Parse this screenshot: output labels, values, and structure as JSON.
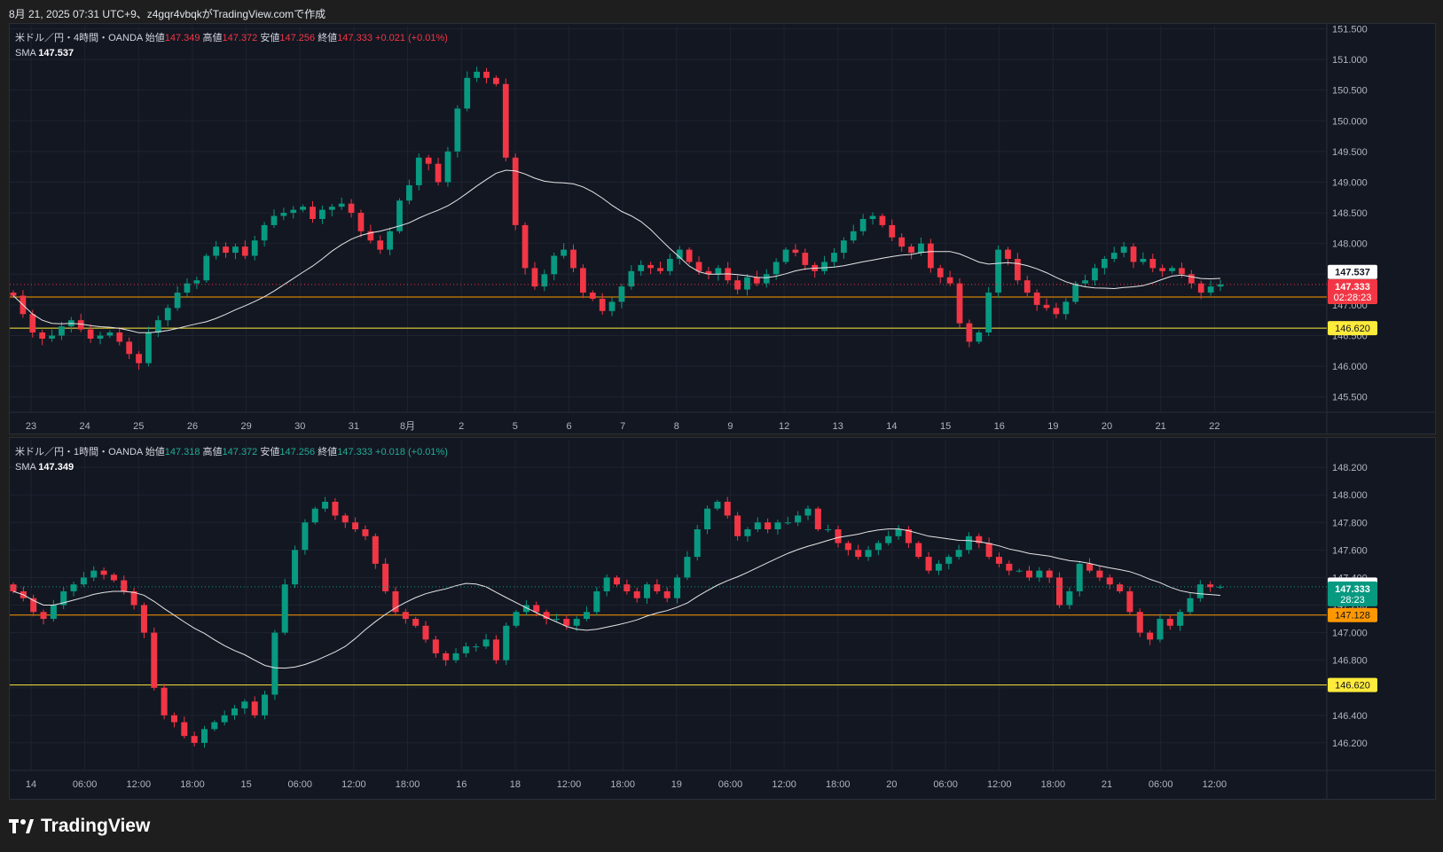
{
  "caption": "8月 21, 2025 07:31 UTC+9、z4gqr4vbqkがTradingView.comで作成",
  "brand": {
    "name": "TradingView",
    "icon": "tradingview-logo-icon"
  },
  "colors": {
    "bg": "#131722",
    "up": "#089981",
    "down": "#f23645",
    "sma": "#e6e6e6",
    "grid": "#1f2330",
    "orange": "#ff9800",
    "yellow": "#ffeb3b",
    "text": "#b2b5be"
  },
  "top": {
    "legend": {
      "symbol": "米ドル／円・4時間・OANDA",
      "open_label": "始値",
      "open": "147.349",
      "high_label": "高値",
      "high": "147.372",
      "low_label": "安値",
      "low": "147.256",
      "close_label": "終値",
      "close": "147.333",
      "change": "+0.021 (+0.01%)",
      "sma_label": "SMA",
      "sma_value": "147.537"
    }
  },
  "bottom": {
    "legend": {
      "symbol": "米ドル／円・1時間・OANDA",
      "open_label": "始値",
      "open": "147.318",
      "high_label": "高値",
      "high": "147.372",
      "low_label": "安値",
      "low": "147.256",
      "close_label": "終値",
      "close": "147.333",
      "change": "+0.018 (+0.01%)",
      "sma_label": "SMA",
      "sma_value": "147.349"
    }
  },
  "chart_data": [
    {
      "type": "candlestick",
      "title": "米ドル／円・4時間・OANDA",
      "ylim": [
        145.25,
        151.55
      ],
      "y_ticks": [
        "145.500",
        "146.000",
        "146.500",
        "147.000",
        "147.500",
        "148.000",
        "148.500",
        "149.000",
        "149.500",
        "150.000",
        "150.500",
        "151.000",
        "151.500"
      ],
      "x_ticks": [
        "23",
        "24",
        "25",
        "26",
        "29",
        "30",
        "31",
        "8月",
        "2",
        "5",
        "6",
        "7",
        "8",
        "9",
        "12",
        "13",
        "14",
        "15",
        "16",
        "19",
        "20",
        "21",
        "22"
      ],
      "close_series": [
        147.15,
        146.85,
        146.55,
        146.45,
        146.5,
        146.65,
        146.75,
        146.6,
        146.45,
        146.5,
        146.55,
        146.4,
        146.2,
        146.05,
        146.55,
        146.75,
        146.95,
        147.2,
        147.35,
        147.4,
        147.8,
        147.95,
        147.85,
        147.95,
        147.8,
        148.05,
        148.3,
        148.45,
        148.5,
        148.55,
        148.6,
        148.4,
        148.55,
        148.6,
        148.65,
        148.5,
        148.2,
        148.05,
        147.9,
        148.2,
        148.7,
        148.95,
        149.4,
        149.3,
        149.0,
        149.5,
        150.2,
        150.7,
        150.8,
        150.7,
        150.6,
        149.4,
        148.3,
        147.6,
        147.3,
        147.5,
        147.8,
        147.9,
        147.6,
        147.2,
        147.1,
        146.9,
        147.05,
        147.3,
        147.55,
        147.65,
        147.6,
        147.55,
        147.75,
        147.9,
        147.7,
        147.55,
        147.5,
        147.6,
        147.4,
        147.25,
        147.45,
        147.35,
        147.5,
        147.7,
        147.9,
        147.85,
        147.65,
        147.55,
        147.7,
        147.85,
        148.05,
        148.2,
        148.4,
        148.45,
        148.3,
        148.1,
        147.95,
        147.85,
        148.0,
        147.6,
        147.45,
        147.35,
        146.7,
        146.4,
        146.55,
        147.2,
        147.9,
        147.75,
        147.4,
        147.2,
        147.0,
        146.95,
        146.85,
        147.05,
        147.35,
        147.4,
        147.6,
        147.75,
        147.85,
        147.95,
        147.7,
        147.75,
        147.6,
        147.55,
        147.6,
        147.5,
        147.35,
        147.2,
        147.3,
        147.333
      ],
      "sma_label": "SMA",
      "horizontal_lines": [
        {
          "label": "147.128",
          "value": 147.128,
          "color": "#ff9800"
        },
        {
          "label": "146.620",
          "value": 146.62,
          "color": "#ffeb3b"
        }
      ],
      "price_tags": [
        {
          "label": "147.537",
          "value": 147.537,
          "bg": "#ffffff",
          "fg": "#131722"
        },
        {
          "label": "147.333",
          "sub": "02:28:23",
          "value": 147.333,
          "bg": "#f23645",
          "fg": "#ffffff"
        }
      ]
    },
    {
      "type": "candlestick",
      "title": "米ドル／円・1時間・OANDA",
      "ylim": [
        146.0,
        148.4
      ],
      "y_ticks": [
        "146.200",
        "146.400",
        "146.600",
        "146.800",
        "147.000",
        "147.200",
        "147.400",
        "147.600",
        "147.800",
        "148.000",
        "148.200"
      ],
      "x_ticks": [
        "14",
        "06:00",
        "12:00",
        "18:00",
        "15",
        "06:00",
        "12:00",
        "18:00",
        "16",
        "18",
        "12:00",
        "18:00",
        "19",
        "06:00",
        "12:00",
        "18:00",
        "20",
        "06:00",
        "12:00",
        "18:00",
        "21",
        "06:00",
        "12:00"
      ],
      "close_series": [
        147.3,
        147.25,
        147.15,
        147.1,
        147.2,
        147.3,
        147.35,
        147.4,
        147.45,
        147.42,
        147.38,
        147.3,
        147.2,
        147.0,
        146.6,
        146.4,
        146.35,
        146.25,
        146.2,
        146.3,
        146.35,
        146.4,
        146.45,
        146.5,
        146.4,
        146.55,
        147.0,
        147.35,
        147.6,
        147.8,
        147.9,
        147.95,
        147.85,
        147.8,
        147.75,
        147.7,
        147.5,
        147.3,
        147.15,
        147.1,
        147.05,
        146.95,
        146.85,
        146.8,
        146.85,
        146.9,
        146.9,
        146.95,
        146.8,
        147.05,
        147.15,
        147.2,
        147.15,
        147.1,
        147.1,
        147.05,
        147.1,
        147.15,
        147.3,
        147.4,
        147.35,
        147.3,
        147.25,
        147.35,
        147.3,
        147.25,
        147.4,
        147.55,
        147.75,
        147.9,
        147.95,
        147.85,
        147.7,
        147.75,
        147.8,
        147.75,
        147.8,
        147.8,
        147.85,
        147.9,
        147.75,
        147.75,
        147.65,
        147.6,
        147.55,
        147.6,
        147.65,
        147.7,
        147.75,
        147.65,
        147.55,
        147.45,
        147.5,
        147.55,
        147.6,
        147.7,
        147.65,
        147.55,
        147.5,
        147.45,
        147.45,
        147.4,
        147.45,
        147.4,
        147.2,
        147.3,
        147.5,
        147.45,
        147.4,
        147.35,
        147.3,
        147.15,
        147.0,
        146.95,
        147.1,
        147.05,
        147.15,
        147.25,
        147.35,
        147.33,
        147.333
      ],
      "sma_label": "SMA",
      "horizontal_lines": [
        {
          "label": "147.128",
          "value": 147.128,
          "color": "#ff9800"
        },
        {
          "label": "146.620",
          "value": 146.62,
          "color": "#ffeb3b"
        }
      ],
      "price_tags": [
        {
          "label": "147.349",
          "value": 147.349,
          "bg": "#ffffff",
          "fg": "#131722"
        },
        {
          "label": "147.333",
          "sub": "28:23",
          "value": 147.333,
          "bg": "#089981",
          "fg": "#ffffff"
        }
      ]
    }
  ]
}
